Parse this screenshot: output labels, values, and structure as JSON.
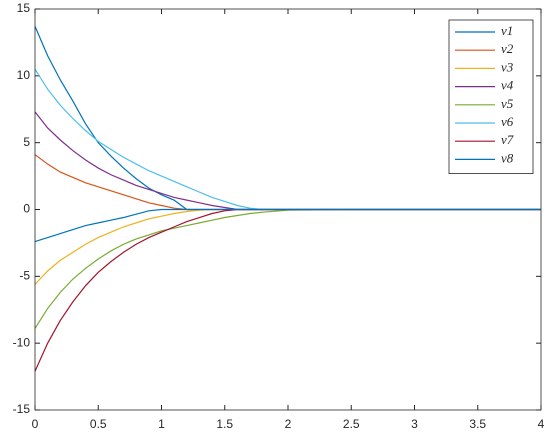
{
  "chart_data": {
    "type": "line",
    "x": [
      0,
      0.1,
      0.2,
      0.3,
      0.4,
      0.5,
      0.6,
      0.7,
      0.8,
      0.9,
      1.0,
      1.1,
      1.2,
      1.3,
      1.4,
      1.5,
      1.6,
      1.7,
      1.8,
      2.0,
      2.5,
      3,
      3.5,
      4
    ],
    "series": [
      {
        "name": "v1",
        "color": "#0072BD",
        "values": [
          13.7,
          11.5,
          9.7,
          8.1,
          6.4,
          5.0,
          4.0,
          3.1,
          2.3,
          1.6,
          1.1,
          0.7,
          0,
          0,
          0,
          0,
          0,
          0,
          0,
          0,
          0,
          0,
          0,
          0
        ]
      },
      {
        "name": "v2",
        "color": "#D95319",
        "values": [
          4.1,
          3.4,
          2.8,
          2.4,
          2.0,
          1.7,
          1.4,
          1.1,
          0.8,
          0.5,
          0.3,
          0.1,
          0,
          0,
          0,
          0,
          0,
          0,
          0,
          0,
          0,
          0,
          0,
          0
        ]
      },
      {
        "name": "v3",
        "color": "#EDB120",
        "values": [
          -5.6,
          -4.6,
          -3.8,
          -3.2,
          -2.6,
          -2.1,
          -1.7,
          -1.3,
          -1.0,
          -0.7,
          -0.5,
          -0.3,
          -0.15,
          -0.05,
          0,
          0,
          0,
          0,
          0,
          0,
          0,
          0,
          0,
          0
        ]
      },
      {
        "name": "v4",
        "color": "#7E2F8E",
        "values": [
          7.3,
          6.1,
          5.2,
          4.4,
          3.7,
          3.1,
          2.6,
          2.2,
          1.8,
          1.5,
          1.2,
          0.9,
          0.7,
          0.5,
          0.3,
          0.15,
          0,
          0,
          0,
          0,
          0,
          0,
          0,
          0
        ]
      },
      {
        "name": "v5",
        "color": "#77AC30",
        "values": [
          -8.9,
          -7.4,
          -6.2,
          -5.2,
          -4.4,
          -3.7,
          -3.1,
          -2.6,
          -2.2,
          -1.9,
          -1.6,
          -1.4,
          -1.2,
          -1.0,
          -0.8,
          -0.6,
          -0.45,
          -0.3,
          -0.2,
          -0.05,
          0,
          0,
          0,
          0
        ]
      },
      {
        "name": "v6",
        "color": "#4DBEEE",
        "values": [
          10.5,
          9.0,
          7.8,
          6.8,
          5.9,
          5.1,
          4.5,
          3.9,
          3.4,
          2.9,
          2.5,
          2.1,
          1.7,
          1.3,
          0.9,
          0.6,
          0.3,
          0.1,
          0,
          0,
          0,
          0,
          0,
          0
        ]
      },
      {
        "name": "v7",
        "color": "#A2142F",
        "values": [
          -12.1,
          -10.0,
          -8.3,
          -6.9,
          -5.7,
          -4.7,
          -3.9,
          -3.2,
          -2.6,
          -2.1,
          -1.7,
          -1.3,
          -0.9,
          -0.6,
          -0.3,
          -0.1,
          0,
          0,
          0,
          0,
          0,
          0,
          0,
          0
        ]
      },
      {
        "name": "v8",
        "color": "#0072BD",
        "values": [
          -2.4,
          -2.1,
          -1.8,
          -1.5,
          -1.2,
          -1.0,
          -0.8,
          -0.6,
          -0.35,
          -0.1,
          0,
          0,
          0,
          0,
          0,
          0,
          0,
          0,
          0,
          0,
          0,
          0,
          0,
          0
        ]
      }
    ],
    "xlim": [
      0,
      4
    ],
    "xticks": [
      0,
      0.5,
      1,
      1.5,
      2,
      2.5,
      3,
      3.5,
      4
    ],
    "ylim": [
      -15,
      15
    ],
    "yticks": [
      -15,
      -10,
      -5,
      0,
      5,
      10,
      15
    ],
    "grid": false,
    "legend": "northeast"
  }
}
